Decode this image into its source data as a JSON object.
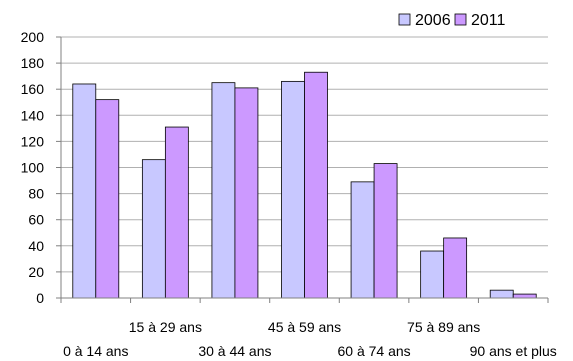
{
  "chart_data": {
    "type": "bar",
    "title": "",
    "xlabel": "",
    "ylabel": "",
    "categories": [
      "0 à 14 ans",
      "15 à 29 ans",
      "30 à 44 ans",
      "45 à 59 ans",
      "60 à 74 ans",
      "75 à 89 ans",
      "90 ans et plus"
    ],
    "series": [
      {
        "name": "2006",
        "values": [
          164,
          106,
          165,
          166,
          89,
          36,
          6
        ],
        "color": "#c8c8ff"
      },
      {
        "name": "2011",
        "values": [
          152,
          131,
          161,
          173,
          103,
          46,
          3
        ],
        "color": "#cc99ff"
      }
    ],
    "ylim": [
      0,
      200
    ],
    "yticks": [
      0,
      20,
      40,
      60,
      80,
      100,
      120,
      140,
      160,
      180,
      200
    ],
    "grid": true,
    "legend": "top-right"
  }
}
